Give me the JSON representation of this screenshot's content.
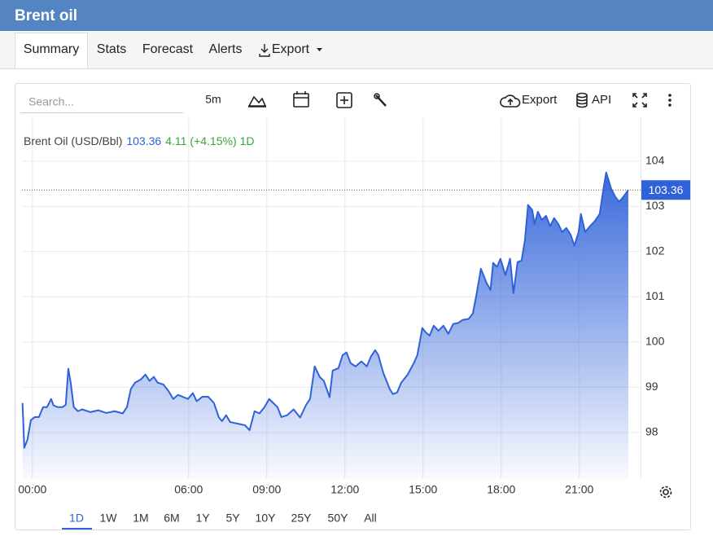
{
  "header": {
    "title": "Brent oil"
  },
  "tabs": [
    "Summary",
    "Stats",
    "Forecast",
    "Alerts",
    "Export"
  ],
  "toolbar": {
    "search_placeholder": "Search...",
    "interval": "5m",
    "export": "Export",
    "api": "API"
  },
  "ranges": [
    "1D",
    "1W",
    "1M",
    "6M",
    "1Y",
    "5Y",
    "10Y",
    "25Y",
    "50Y",
    "All"
  ],
  "chart_data": {
    "type": "area",
    "legend": {
      "name": "Brent Oil (USD/Bbl)",
      "change": 4.11,
      "change_pct": "(+4.15%)",
      "period": "1D"
    },
    "x": [
      -0.38,
      -0.31,
      -0.19,
      -0.06,
      0.09,
      0.25,
      0.41,
      0.56,
      0.72,
      0.81,
      0.97,
      1.16,
      1.28,
      1.38,
      1.47,
      1.59,
      1.75,
      1.91,
      2.22,
      2.53,
      2.84,
      3.16,
      3.47,
      3.63,
      3.78,
      3.94,
      4.16,
      4.34,
      4.5,
      4.66,
      4.81,
      5.03,
      5.22,
      5.41,
      5.59,
      5.81,
      5.97,
      6.16,
      6.31,
      6.53,
      6.75,
      6.97,
      7.16,
      7.28,
      7.44,
      7.59,
      7.84,
      8.16,
      8.34,
      8.53,
      8.72,
      8.91,
      9.09,
      9.25,
      9.41,
      9.56,
      9.78,
      10.03,
      10.28,
      10.5,
      10.66,
      10.84,
      11.03,
      11.19,
      11.41,
      11.53,
      11.75,
      11.91,
      12.06,
      12.22,
      12.41,
      12.63,
      12.84,
      13,
      13.16,
      13.28,
      13.47,
      13.72,
      13.84,
      14,
      14.16,
      14.41,
      14.66,
      14.78,
      14.97,
      15.09,
      15.25,
      15.41,
      15.59,
      15.78,
      15.97,
      16.16,
      16.34,
      16.53,
      16.75,
      16.91,
      17.06,
      17.22,
      17.44,
      17.59,
      17.69,
      17.84,
      17.97,
      18.16,
      18.34,
      18.47,
      18.63,
      18.78,
      18.91,
      19.03,
      19.19,
      19.28,
      19.41,
      19.56,
      19.72,
      19.88,
      20.03,
      20.19,
      20.34,
      20.5,
      20.66,
      20.81,
      20.97,
      21.06,
      21.22,
      21.41,
      21.59,
      21.78,
      21.91,
      22.03,
      22.22,
      22.38,
      22.53,
      22.69,
      22.88
    ],
    "series": [
      {
        "name": "Brent Oil",
        "color": "#2f62d9",
        "values": [
          98.65,
          97.66,
          97.84,
          98.27,
          98.34,
          98.34,
          98.56,
          98.56,
          98.74,
          98.6,
          98.56,
          98.56,
          98.61,
          99.41,
          99.1,
          98.56,
          98.47,
          98.51,
          98.45,
          98.49,
          98.43,
          98.47,
          98.42,
          98.56,
          98.96,
          99.1,
          99.17,
          99.28,
          99.14,
          99.23,
          99.1,
          99.06,
          98.92,
          98.74,
          98.83,
          98.78,
          98.74,
          98.87,
          98.69,
          98.79,
          98.79,
          98.65,
          98.33,
          98.25,
          98.38,
          98.23,
          98.2,
          98.16,
          98.05,
          98.47,
          98.42,
          98.56,
          98.74,
          98.65,
          98.56,
          98.34,
          98.38,
          98.51,
          98.33,
          98.6,
          98.74,
          99.46,
          99.23,
          99.14,
          98.78,
          99.37,
          99.42,
          99.71,
          99.77,
          99.53,
          99.46,
          99.57,
          99.46,
          99.68,
          99.82,
          99.71,
          99.32,
          98.96,
          98.85,
          98.88,
          99.1,
          99.28,
          99.55,
          99.71,
          100.31,
          100.22,
          100.14,
          100.36,
          100.25,
          100.36,
          100.18,
          100.4,
          100.42,
          100.49,
          100.51,
          100.63,
          101.08,
          101.62,
          101.3,
          101.15,
          101.75,
          101.66,
          101.84,
          101.48,
          101.84,
          101.08,
          101.77,
          101.8,
          102.25,
          103.03,
          102.92,
          102.61,
          102.88,
          102.7,
          102.79,
          102.56,
          102.74,
          102.61,
          102.43,
          102.52,
          102.38,
          102.13,
          102.43,
          102.83,
          102.43,
          102.56,
          102.67,
          102.83,
          103.33,
          103.75,
          103.39,
          103.21,
          103.1,
          103.21,
          103.36
        ]
      }
    ],
    "xlim": [
      -0.4,
      23.35
    ],
    "xticks": [
      {
        "value": 0,
        "label": "00:00"
      },
      {
        "value": 6,
        "label": "06:00"
      },
      {
        "value": 9,
        "label": "09:00"
      },
      {
        "value": 12,
        "label": "12:00"
      },
      {
        "value": 15,
        "label": "15:00"
      },
      {
        "value": 18,
        "label": "18:00"
      },
      {
        "value": 21,
        "label": "21:00"
      }
    ],
    "ylim": [
      96.97,
      104.95
    ],
    "yticks": [
      98,
      99,
      100,
      101,
      102,
      103,
      104
    ],
    "grid": true
  }
}
